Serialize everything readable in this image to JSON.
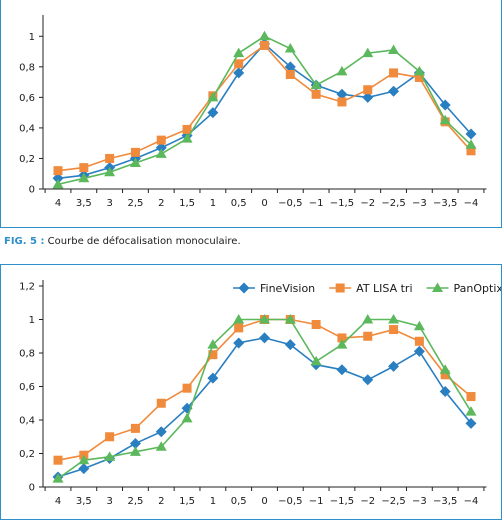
{
  "caption": {
    "label": "FIG. 5 :",
    "text": "Courbe de défocalisation monoculaire."
  },
  "colors": {
    "frame": "#2f8fc9",
    "FineVision": "#2a7fc1",
    "AT LISA tri": "#f08a3c",
    "PanOptix": "#5cb85c"
  },
  "chart_data": [
    {
      "type": "line",
      "x": [
        "4",
        "3,5",
        "3",
        "2,5",
        "2",
        "1,5",
        "1",
        "0,5",
        "0",
        "−0,5",
        "−1",
        "−1,5",
        "−2",
        "−2,5",
        "−3",
        "−3,5",
        "−4"
      ],
      "yticks": [
        "0",
        "0,2",
        "0,4",
        "0,6",
        "0,8",
        "1"
      ],
      "ylim": [
        0,
        1.1
      ],
      "legend": "none",
      "series": [
        {
          "name": "FineVision",
          "marker": "diamond",
          "values": [
            0.07,
            0.09,
            0.14,
            0.2,
            0.27,
            0.35,
            0.5,
            0.76,
            0.95,
            0.8,
            0.68,
            0.62,
            0.6,
            0.64,
            0.76,
            0.55,
            0.36
          ]
        },
        {
          "name": "AT LISA tri",
          "marker": "square",
          "values": [
            0.12,
            0.14,
            0.2,
            0.24,
            0.32,
            0.39,
            0.61,
            0.82,
            0.94,
            0.75,
            0.62,
            0.57,
            0.65,
            0.76,
            0.73,
            0.44,
            0.25
          ]
        },
        {
          "name": "PanOptix",
          "marker": "triangle",
          "values": [
            0.03,
            0.07,
            0.11,
            0.17,
            0.23,
            0.33,
            0.6,
            0.89,
            1.0,
            0.92,
            0.68,
            0.77,
            0.89,
            0.91,
            0.77,
            0.45,
            0.29
          ]
        }
      ]
    },
    {
      "type": "line",
      "x": [
        "4",
        "3,5",
        "3",
        "2,5",
        "2",
        "1,5",
        "1",
        "0,5",
        "0",
        "−0,5",
        "−1",
        "−1,5",
        "−2",
        "−2,5",
        "−3",
        "−3,5",
        "−4"
      ],
      "yticks": [
        "0",
        "0,2",
        "0,4",
        "0,6",
        "0,8",
        "1",
        "1,2"
      ],
      "ylim": [
        0,
        1.2
      ],
      "legend": "top-right",
      "series": [
        {
          "name": "FineVision",
          "marker": "diamond",
          "values": [
            0.06,
            0.11,
            0.17,
            0.26,
            0.33,
            0.47,
            0.65,
            0.86,
            0.89,
            0.85,
            0.73,
            0.7,
            0.64,
            0.72,
            0.81,
            0.57,
            0.38
          ]
        },
        {
          "name": "AT LISA tri",
          "marker": "square",
          "values": [
            0.16,
            0.19,
            0.3,
            0.35,
            0.5,
            0.59,
            0.79,
            0.95,
            1.0,
            1.0,
            0.97,
            0.89,
            0.9,
            0.94,
            0.87,
            0.67,
            0.54
          ]
        },
        {
          "name": "PanOptix",
          "marker": "triangle",
          "values": [
            0.05,
            0.16,
            0.18,
            0.21,
            0.24,
            0.41,
            0.85,
            1.0,
            1.0,
            1.0,
            0.75,
            0.85,
            1.0,
            1.0,
            0.96,
            0.7,
            0.45
          ]
        }
      ]
    }
  ]
}
